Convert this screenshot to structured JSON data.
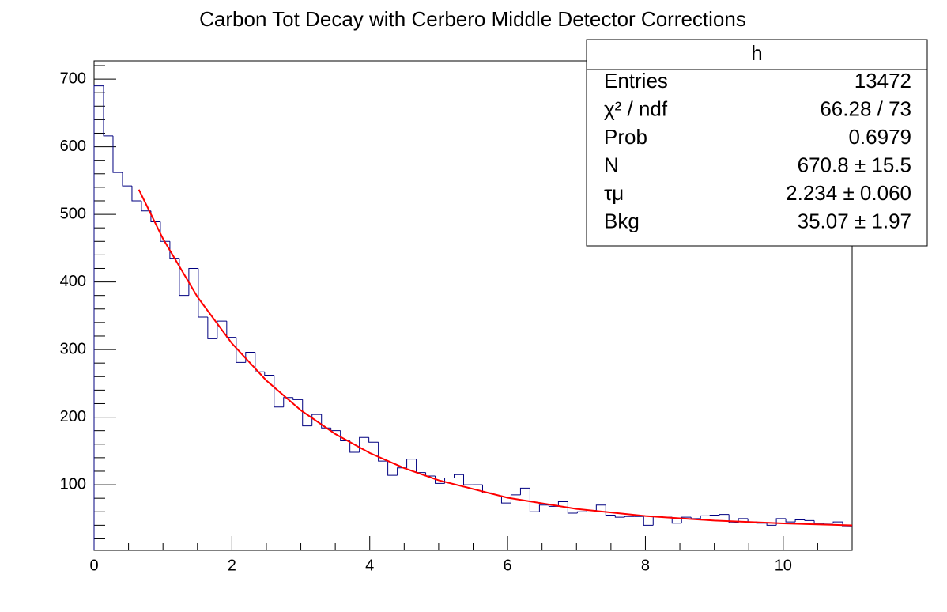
{
  "chart_data": {
    "type": "histogram",
    "title": "Carbon Tot Decay with Cerbero Middle Detector Corrections",
    "bins": [
      0,
      0.1375,
      0.275,
      0.4125,
      0.55,
      0.6875,
      0.825,
      0.9625,
      1.1,
      1.2375,
      1.375,
      1.5125,
      1.65,
      1.7875,
      1.925,
      2.0625,
      2.2,
      2.3375,
      2.475,
      2.6125,
      2.75,
      2.8875,
      3.025,
      3.1625,
      3.3,
      3.4375,
      3.575,
      3.7125,
      3.85,
      3.9875,
      4.125,
      4.2625,
      4.4,
      4.5375,
      4.675,
      4.8125,
      4.95,
      5.0875,
      5.225,
      5.3625,
      5.5,
      5.6375,
      5.775,
      5.9125,
      6.05,
      6.1875,
      6.325,
      6.4625,
      6.6,
      6.7375,
      6.875,
      7.0125,
      7.15,
      7.2875,
      7.425,
      7.5625,
      7.7,
      7.8375,
      7.975,
      8.1125,
      8.25,
      8.3875,
      8.525,
      8.6625,
      8.8,
      8.9375,
      9.075,
      9.2125,
      9.35,
      9.4875,
      9.625,
      9.7625,
      9.9,
      10.0375,
      10.175,
      10.3125,
      10.45,
      10.5875,
      10.725,
      10.8625,
      11
    ],
    "values": [
      690,
      616,
      562,
      542,
      520,
      505,
      489,
      460,
      435,
      380,
      420,
      348,
      316,
      342,
      318,
      281,
      296,
      267,
      262,
      215,
      229,
      226,
      187,
      204,
      184,
      180,
      165,
      148,
      170,
      163,
      135,
      114,
      125,
      138,
      118,
      113,
      102,
      110,
      115,
      100,
      100,
      88,
      82,
      73,
      85,
      95,
      60,
      70,
      68,
      75,
      58,
      60,
      62,
      70,
      55,
      52,
      53,
      53,
      40,
      53,
      52,
      43,
      52,
      50,
      54,
      55,
      56,
      44,
      50,
      45,
      43,
      40,
      50,
      45,
      48,
      47,
      42,
      43,
      45,
      38
    ],
    "color": "#000080",
    "fit": {
      "color": "#ff0000",
      "x": [
        0.65,
        1,
        1.5,
        2,
        2.5,
        3,
        3.5,
        4,
        4.5,
        5,
        6,
        7,
        8,
        9,
        10,
        11
      ],
      "values": [
        536.6,
        463.9,
        377.9,
        309.1,
        254.2,
        210.2,
        175.1,
        147.0,
        124.6,
        106.6,
        80.8,
        64.3,
        53.7,
        47.0,
        42.7,
        39.9
      ]
    },
    "xlim": [
      0,
      11
    ],
    "xticks": [
      0,
      2,
      4,
      6,
      8,
      10
    ],
    "ylim": [
      3,
      727
    ],
    "yticks": [
      100,
      200,
      300,
      400,
      500,
      600,
      700
    ],
    "stats": {
      "title": "h",
      "rows": [
        {
          "label": "Entries",
          "value": "13472"
        },
        {
          "label": "χ² / ndf",
          "value": "66.28 / 73"
        },
        {
          "label": "Prob",
          "value": "0.6979"
        },
        {
          "label": "N",
          "value": "670.8 ± 15.5"
        },
        {
          "label": "τμ",
          "value": "2.234 ± 0.060"
        },
        {
          "label": "Bkg",
          "value": "35.07 ± 1.97"
        }
      ]
    }
  }
}
